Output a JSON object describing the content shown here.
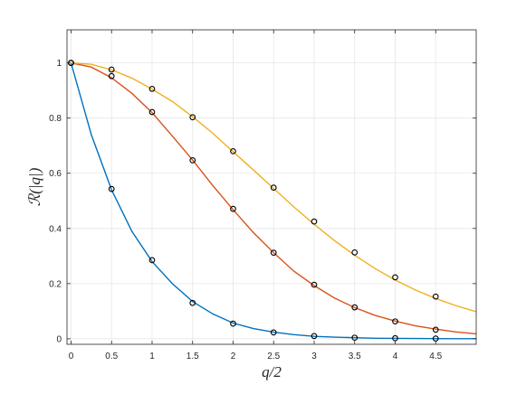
{
  "chart_data": {
    "type": "line",
    "title": "",
    "xlabel": "q/2",
    "ylabel": "ℛ(|q|)",
    "xlim": [
      -0.05,
      5.0
    ],
    "ylim": [
      -0.02,
      1.12
    ],
    "xticks": [
      0,
      0.5,
      1,
      1.5,
      2,
      2.5,
      3,
      3.5,
      4,
      4.5
    ],
    "yticks": [
      0,
      0.2,
      0.4,
      0.6,
      0.8,
      1
    ],
    "grid": true,
    "legend": "none",
    "series": [
      {
        "color": "#0072BD",
        "curve_x": [
          0,
          0.25,
          0.5,
          0.75,
          1,
          1.25,
          1.5,
          1.75,
          2,
          2.25,
          2.5,
          2.75,
          3,
          3.25,
          3.5,
          3.75,
          4,
          4.25,
          4.5,
          4.75,
          5
        ],
        "curve_y": [
          1,
          0.74,
          0.54,
          0.39,
          0.28,
          0.2,
          0.135,
          0.09,
          0.057,
          0.037,
          0.024,
          0.015,
          0.009,
          0.006,
          0.004,
          0.002,
          0.0015,
          0.001,
          0.0006,
          0.0004,
          0.0002
        ],
        "points_x": [
          0,
          0.5,
          1,
          1.5,
          2,
          2.5,
          3,
          3.5,
          4,
          4.5
        ],
        "points_y": [
          1,
          0.543,
          0.285,
          0.13,
          0.055,
          0.023,
          0.01,
          0.004,
          0.002,
          0.001
        ]
      },
      {
        "color": "#D95319",
        "curve_x": [
          0,
          0.25,
          0.5,
          0.75,
          1,
          1.25,
          1.5,
          1.75,
          2,
          2.25,
          2.5,
          2.75,
          3,
          3.25,
          3.5,
          3.75,
          4,
          4.25,
          4.5,
          4.75,
          5
        ],
        "curve_y": [
          1,
          0.985,
          0.946,
          0.89,
          0.82,
          0.735,
          0.648,
          0.555,
          0.468,
          0.385,
          0.312,
          0.245,
          0.193,
          0.148,
          0.113,
          0.085,
          0.064,
          0.047,
          0.035,
          0.025,
          0.018
        ],
        "points_x": [
          0,
          0.5,
          1,
          1.5,
          2,
          2.5,
          3,
          3.5,
          4,
          4.5
        ],
        "points_y": [
          1,
          0.952,
          0.822,
          0.647,
          0.471,
          0.312,
          0.196,
          0.114,
          0.063,
          0.033
        ]
      },
      {
        "color": "#EDB120",
        "curve_x": [
          0,
          0.25,
          0.5,
          0.75,
          1,
          1.25,
          1.5,
          1.75,
          2,
          2.25,
          2.5,
          2.75,
          3,
          3.25,
          3.5,
          3.75,
          4,
          4.25,
          4.5,
          4.75,
          5
        ],
        "curve_y": [
          1,
          0.995,
          0.975,
          0.945,
          0.905,
          0.86,
          0.805,
          0.745,
          0.678,
          0.612,
          0.545,
          0.478,
          0.415,
          0.356,
          0.303,
          0.255,
          0.213,
          0.177,
          0.146,
          0.12,
          0.098
        ],
        "points_x": [
          0,
          0.5,
          1,
          1.5,
          2,
          2.5,
          3,
          3.5,
          4,
          4.5
        ],
        "points_y": [
          1,
          0.976,
          0.906,
          0.803,
          0.68,
          0.548,
          0.425,
          0.313,
          0.223,
          0.153
        ]
      }
    ]
  }
}
